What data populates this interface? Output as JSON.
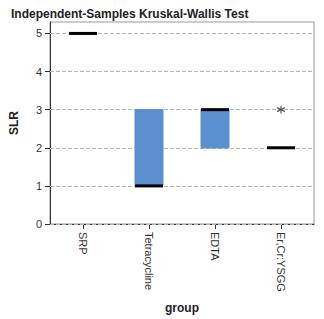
{
  "chart_data": {
    "type": "boxplot",
    "title": "Independent-Samples Kruskal-Wallis Test",
    "x_label": "group",
    "y_label": "SLR",
    "categories": [
      "SRP",
      "Tetracycline",
      "EDTA",
      "Er,Cr:YSGG"
    ],
    "series": [
      {
        "name": "SLR",
        "color": "#5b8fd0",
        "values": [
          [
            5,
            5,
            5,
            5,
            5
          ],
          [
            1,
            1,
            1,
            3,
            3
          ],
          [
            2,
            2,
            3,
            3,
            3
          ],
          [
            2,
            2,
            2,
            2,
            2
          ]
        ]
      }
    ],
    "outliers": [
      {
        "category": "Er,Cr:YSGG",
        "value": 3
      }
    ],
    "marker": "asterisk",
    "ylim": [
      0,
      5.3
    ],
    "yticks": [
      0,
      1,
      2,
      3,
      4,
      5
    ],
    "grid": true
  }
}
